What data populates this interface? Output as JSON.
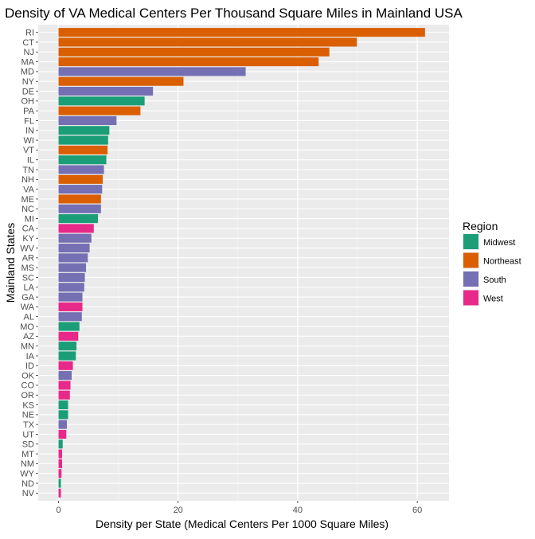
{
  "chart_data": {
    "type": "bar",
    "orientation": "horizontal",
    "title": "Density of VA Medical Centers Per Thousand Square Miles in Mainland USA",
    "xlabel": "Density per State (Medical Centers Per 1000 Square Miles)",
    "ylabel": "Mainland States",
    "xlim": [
      0,
      64
    ],
    "xticks": [
      0,
      20,
      40,
      60
    ],
    "grid": true,
    "legend": {
      "title": "Region",
      "position": "right",
      "entries": [
        "Midwest",
        "Northeast",
        "South",
        "West"
      ]
    },
    "colors": {
      "Midwest": "#1b9e77",
      "Northeast": "#d95f02",
      "South": "#7570b3",
      "West": "#e7298a"
    },
    "categories": [
      "RI",
      "CT",
      "NJ",
      "MA",
      "MD",
      "NY",
      "DE",
      "OH",
      "PA",
      "FL",
      "IN",
      "WI",
      "VT",
      "IL",
      "TN",
      "NH",
      "VA",
      "ME",
      "NC",
      "MI",
      "CA",
      "KY",
      "WV",
      "AR",
      "MS",
      "SC",
      "LA",
      "GA",
      "WA",
      "AL",
      "MO",
      "AZ",
      "MN",
      "IA",
      "ID",
      "OK",
      "CO",
      "OR",
      "KS",
      "NE",
      "TX",
      "UT",
      "SD",
      "MT",
      "NM",
      "WY",
      "ND",
      "NV"
    ],
    "regions": [
      "Northeast",
      "Northeast",
      "Northeast",
      "Northeast",
      "South",
      "Northeast",
      "South",
      "Midwest",
      "Northeast",
      "South",
      "Midwest",
      "Midwest",
      "Northeast",
      "Midwest",
      "South",
      "Northeast",
      "South",
      "Northeast",
      "South",
      "Midwest",
      "West",
      "South",
      "South",
      "South",
      "South",
      "South",
      "South",
      "South",
      "West",
      "South",
      "Midwest",
      "West",
      "Midwest",
      "Midwest",
      "West",
      "South",
      "West",
      "West",
      "Midwest",
      "Midwest",
      "South",
      "West",
      "Midwest",
      "West",
      "West",
      "West",
      "Midwest",
      "West"
    ],
    "values": [
      61.3,
      49.9,
      45.3,
      43.5,
      31.3,
      20.9,
      15.8,
      14.4,
      13.7,
      9.7,
      8.5,
      8.3,
      8.2,
      8.0,
      7.6,
      7.4,
      7.3,
      7.1,
      7.1,
      6.6,
      5.9,
      5.5,
      5.2,
      4.9,
      4.6,
      4.4,
      4.3,
      4.0,
      4.0,
      3.9,
      3.5,
      3.3,
      3.0,
      2.9,
      2.4,
      2.2,
      2.0,
      1.9,
      1.6,
      1.6,
      1.4,
      1.3,
      0.7,
      0.6,
      0.6,
      0.5,
      0.4,
      0.4
    ]
  }
}
